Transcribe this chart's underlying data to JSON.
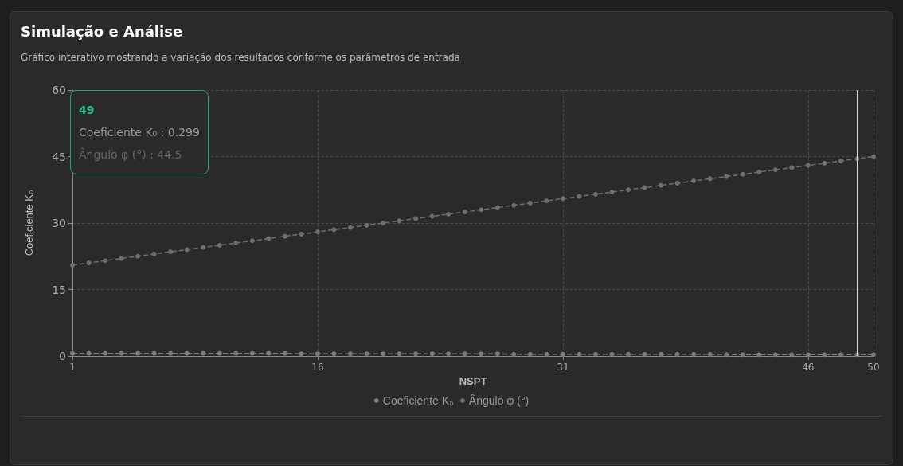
{
  "chart_data": {
    "type": "line",
    "title": "Simulação e Análise",
    "subtitle": "Gráfico interativo mostrando a variação dos resultados conforme os parâmetros de entrada",
    "xlabel": "NSPT",
    "ylabel": "Coeficiente K₀",
    "x": [
      1,
      2,
      3,
      4,
      5,
      6,
      7,
      8,
      9,
      10,
      11,
      12,
      13,
      14,
      15,
      16,
      17,
      18,
      19,
      20,
      21,
      22,
      23,
      24,
      25,
      26,
      27,
      28,
      29,
      30,
      31,
      32,
      33,
      34,
      35,
      36,
      37,
      38,
      39,
      40,
      41,
      42,
      43,
      44,
      45,
      46,
      47,
      48,
      49,
      50
    ],
    "series": [
      {
        "name": "Coeficiente K₀",
        "color": "#7a7a7a",
        "values": [
          0.6,
          0.6,
          0.6,
          0.6,
          0.6,
          0.6,
          0.6,
          0.6,
          0.6,
          0.6,
          0.6,
          0.6,
          0.6,
          0.6,
          0.5,
          0.5,
          0.5,
          0.5,
          0.5,
          0.5,
          0.5,
          0.5,
          0.5,
          0.5,
          0.5,
          0.5,
          0.5,
          0.4,
          0.4,
          0.4,
          0.4,
          0.4,
          0.4,
          0.4,
          0.4,
          0.4,
          0.4,
          0.4,
          0.4,
          0.4,
          0.3,
          0.3,
          0.3,
          0.3,
          0.3,
          0.3,
          0.3,
          0.3,
          0.3,
          0.3
        ]
      },
      {
        "name": "Ângulo φ (°)",
        "color": "#6e6e6e",
        "values": [
          20.5,
          21,
          21.5,
          22,
          22.5,
          23,
          23.5,
          24,
          24.5,
          25,
          25.5,
          26,
          26.5,
          27,
          27.5,
          28,
          28.5,
          29,
          29.5,
          30,
          30.5,
          31,
          31.5,
          32,
          32.5,
          33,
          33.5,
          34,
          34.5,
          35,
          35.5,
          36,
          36.5,
          37,
          37.5,
          38,
          38.5,
          39,
          39.5,
          40,
          40.5,
          41,
          41.5,
          42,
          42.5,
          43,
          43.5,
          44,
          44.5,
          45
        ]
      }
    ],
    "xlim": [
      1,
      50
    ],
    "xticks": [
      1,
      16,
      31,
      46,
      50
    ],
    "ylim": [
      0,
      60
    ],
    "yticks": [
      0,
      15,
      30,
      45,
      60
    ],
    "ref_lines": [
      {
        "axis": "x",
        "value": 49,
        "label": null,
        "color": "#dddddd",
        "line_style": "solid"
      }
    ],
    "annotations": [
      "49",
      "Coeficiente K₀ : 0.299",
      "Ângulo φ (°) : 44.5"
    ],
    "grid": true,
    "legend": "bottom",
    "marker": "circle",
    "line_style": "dashed"
  }
}
